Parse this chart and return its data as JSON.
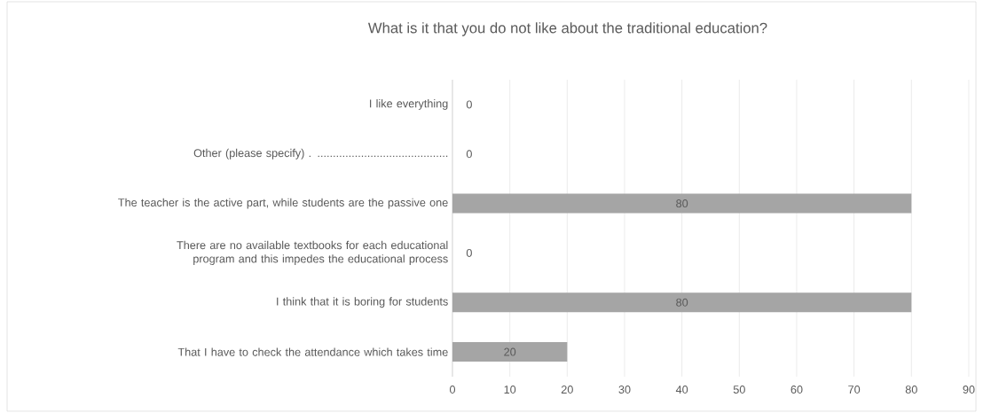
{
  "chart_data": {
    "type": "bar",
    "orientation": "horizontal",
    "title": "What is it that you do not like about the traditional education?",
    "categories": [
      "I like everything",
      "Other (please specify) . ..........................................",
      "The teacher is the active part, while students are the passive one",
      "There are no available textbooks for each educational program and this impedes the educational process",
      "I think that it is boring for students",
      "That I have to check the attendance which takes time"
    ],
    "values": [
      0,
      0,
      80,
      0,
      80,
      20
    ],
    "color": "#a5a5a5",
    "xlim": [
      0,
      90
    ],
    "xticks": [
      0,
      10,
      20,
      30,
      40,
      50,
      60,
      70,
      80,
      90
    ],
    "grid": "x",
    "data_labels": true
  }
}
